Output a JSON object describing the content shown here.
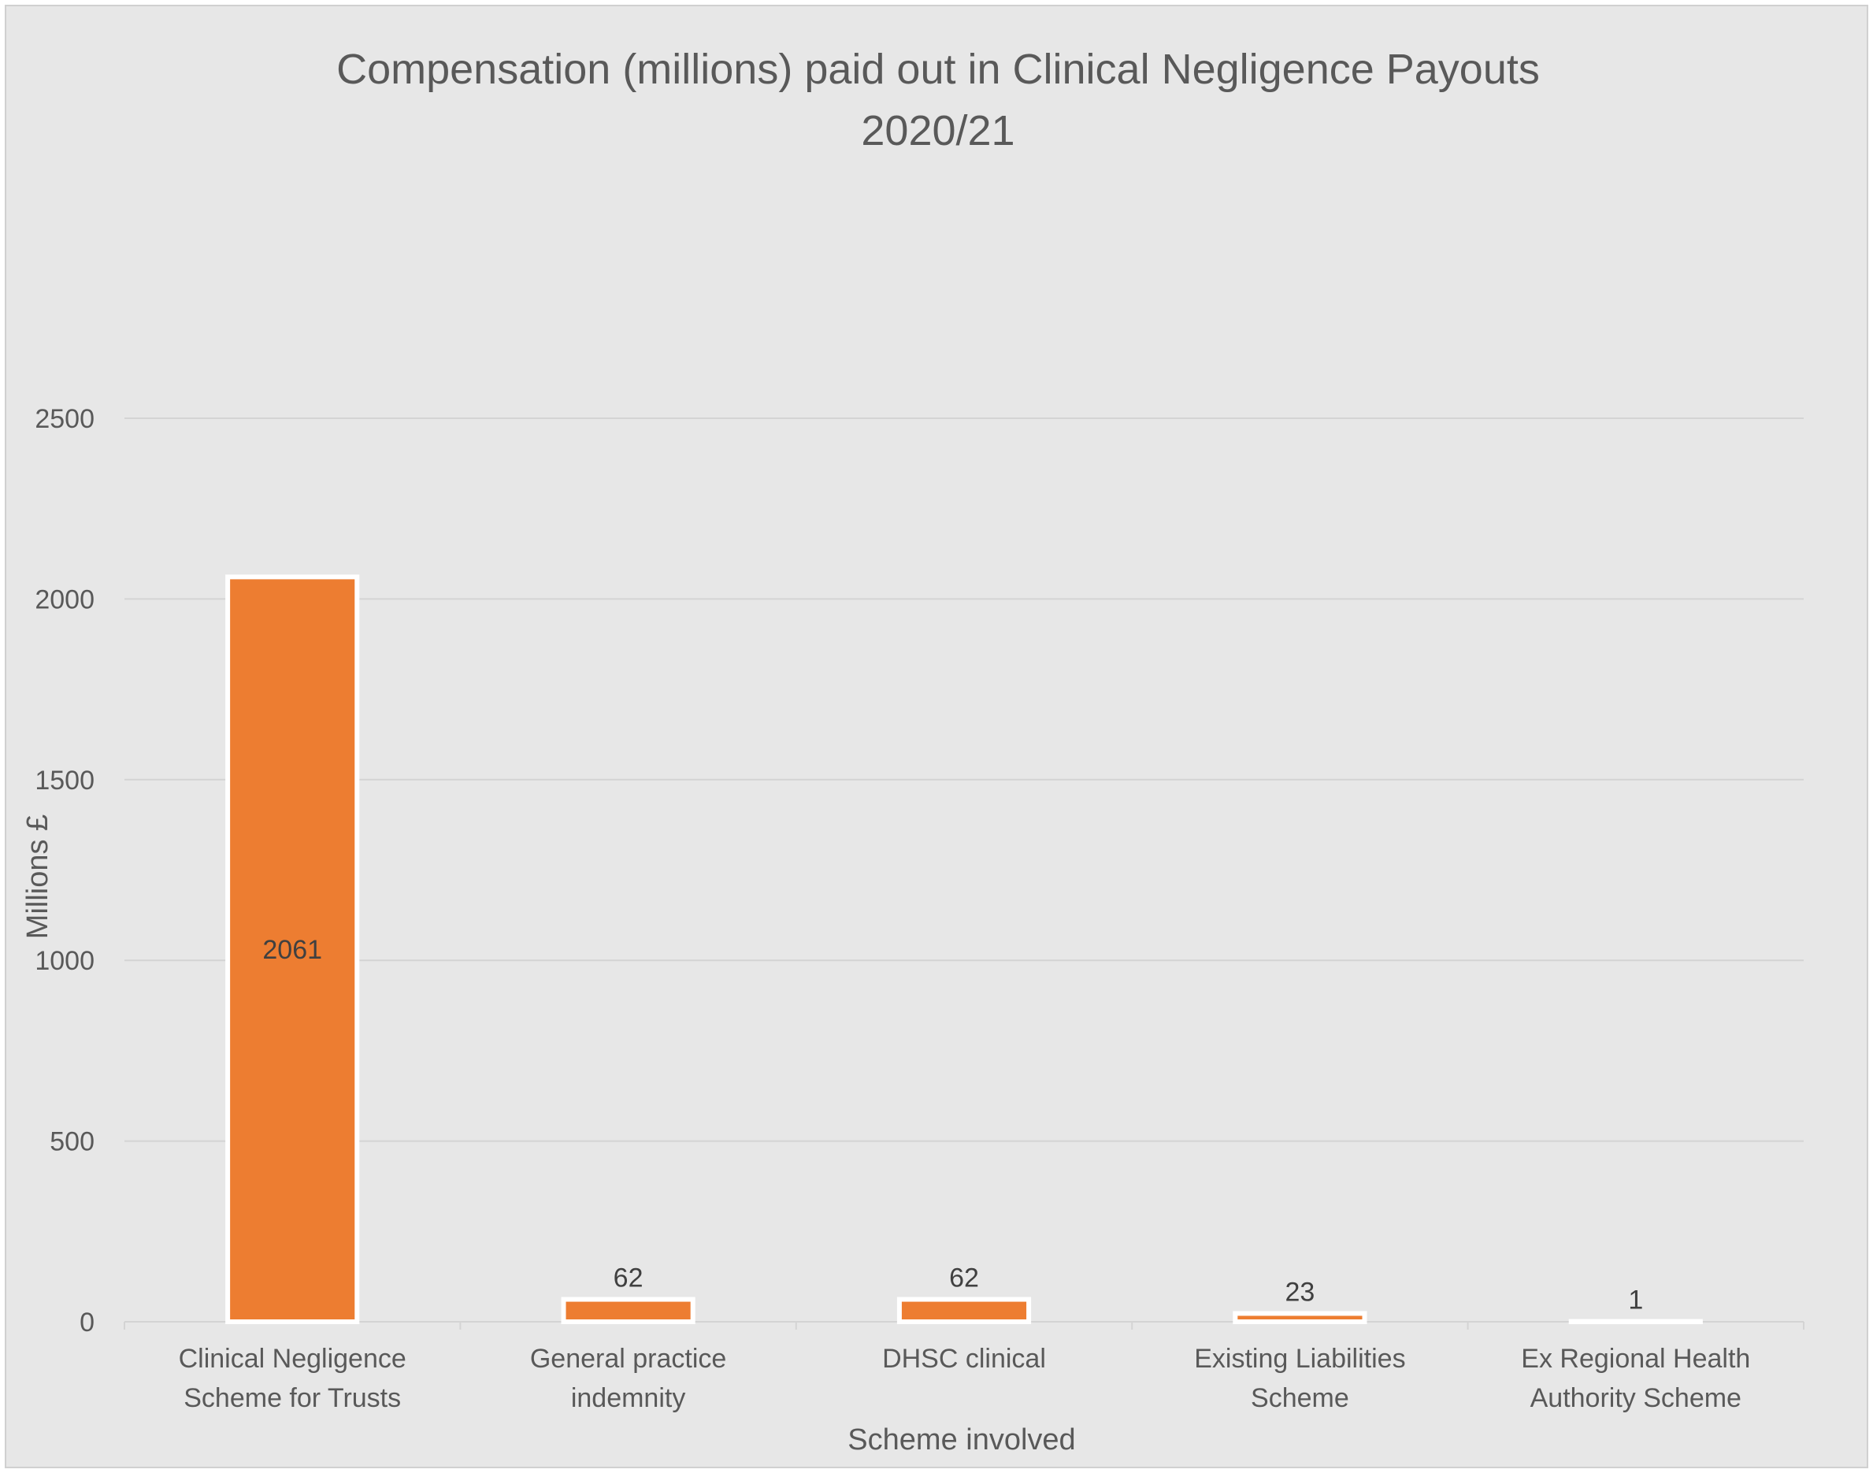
{
  "chart_data": {
    "type": "bar",
    "title": "Compensation (millions) paid out in Clinical Negligence Payouts",
    "subtitle": "2020/21",
    "xlabel": "Scheme involved",
    "ylabel": "Millions £",
    "categories": [
      [
        "Clinical Negligence",
        "Scheme for Trusts"
      ],
      [
        "General practice",
        "indemnity"
      ],
      [
        "DHSC clinical"
      ],
      [
        "Existing Liabilities",
        "Scheme"
      ],
      [
        "Ex Regional Health",
        "Authority Scheme"
      ]
    ],
    "values": [
      2061,
      62,
      62,
      23,
      1
    ],
    "data_labels": [
      "2061",
      "62",
      "62",
      "23",
      "1"
    ],
    "data_label_positions": [
      "center",
      "outside-end",
      "outside-end",
      "outside-end",
      "outside-end"
    ],
    "ylim": [
      0,
      2500
    ],
    "yticks": [
      0,
      500,
      1000,
      1500,
      2000,
      2500
    ],
    "grid": true,
    "legend": "none",
    "colors": {
      "bar": "#ed7d31",
      "bar_outline": "#ffffff",
      "grid": "#d4d4d4",
      "background": "#e7e7e7"
    }
  }
}
